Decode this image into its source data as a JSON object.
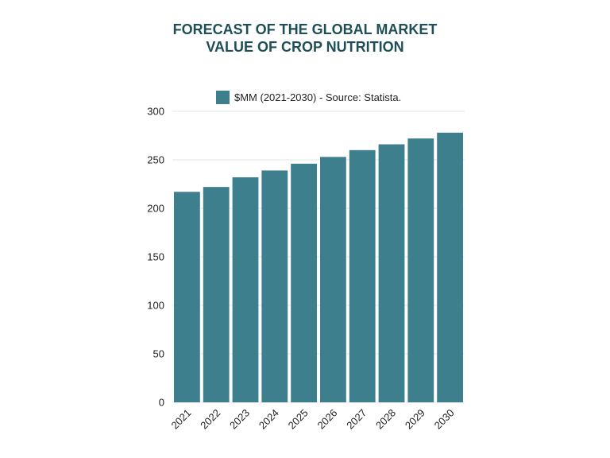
{
  "chart_data": {
    "type": "bar",
    "title_lines": [
      "FORECAST OF THE GLOBAL MARKET",
      "VALUE OF CROP NUTRITION"
    ],
    "categories": [
      "2021",
      "2022",
      "2023",
      "2024",
      "2025",
      "2026",
      "2027",
      "2028",
      "2029",
      "2030"
    ],
    "series": [
      {
        "name": "$MM (2021-2030) - Source: Statista.",
        "values": [
          217,
          222,
          232,
          239,
          246,
          253,
          260,
          266,
          272,
          278
        ],
        "color": "#3e7f8e"
      }
    ],
    "xlabel": "",
    "ylabel": "",
    "ylim": [
      0,
      300
    ],
    "yticks": [
      "0",
      "50",
      "100",
      "150",
      "200",
      "250",
      "300"
    ],
    "grid": true,
    "legend_position": "top",
    "colors": {
      "title": "#1f4e57",
      "bar": "#3e7f8e",
      "grid": "#e6e6e6"
    }
  }
}
